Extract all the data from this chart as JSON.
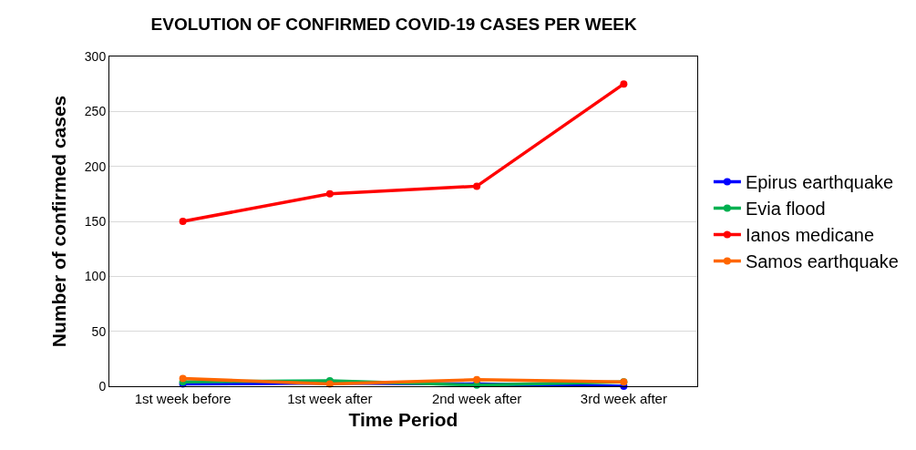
{
  "chart_data": {
    "type": "line",
    "title": "EVOLUTION OF CONFIRMED COVID-19 CASES PER WEEK",
    "xlabel": "Time Period",
    "ylabel": "Number of confirmed cases",
    "categories": [
      "1st week before",
      "1st week after",
      "2nd week after",
      "3rd week after"
    ],
    "series": [
      {
        "name": "Epirus earthquake",
        "color": "#0000ff",
        "values": [
          2,
          3,
          2,
          0
        ]
      },
      {
        "name": "Evia flood",
        "color": "#00b050",
        "values": [
          4,
          5,
          1,
          4
        ]
      },
      {
        "name": "Ianos medicane",
        "color": "#ff0000",
        "values": [
          150,
          175,
          182,
          275
        ]
      },
      {
        "name": "Samos earthquake",
        "color": "#ff6600",
        "values": [
          7,
          2,
          6,
          4
        ]
      }
    ],
    "ylim": [
      0,
      300
    ],
    "yticks": [
      0,
      50,
      100,
      150,
      200,
      250,
      300
    ],
    "grid": "y",
    "legend": "right",
    "marker": "circle",
    "line_style": "solid"
  }
}
